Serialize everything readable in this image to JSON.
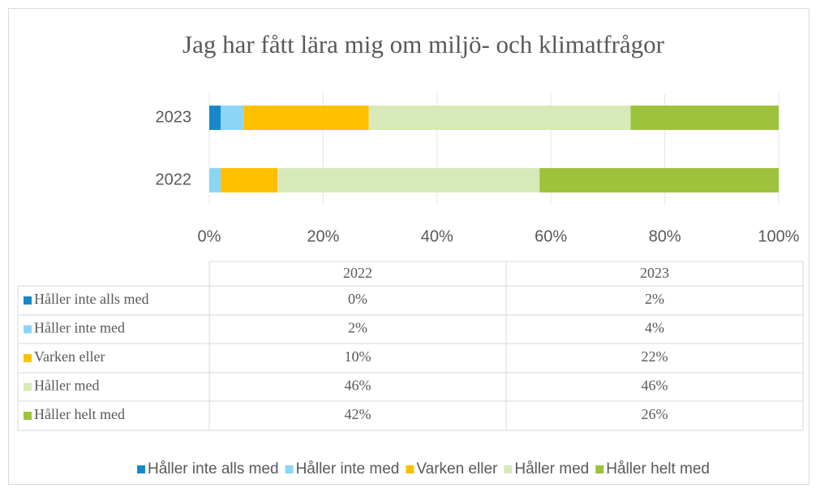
{
  "chart_data": {
    "type": "bar",
    "orientation": "horizontal",
    "stacked": true,
    "title": "Jag har fått lära mig om miljö- och klimatfrågor",
    "categories": [
      "2022",
      "2023"
    ],
    "series": [
      {
        "name": "Håller inte alls med",
        "color": "#1789c9",
        "values": [
          0,
          2
        ],
        "value_labels": [
          "0%",
          "2%"
        ]
      },
      {
        "name": "Håller inte med",
        "color": "#8bd6f7",
        "values": [
          2,
          4
        ],
        "value_labels": [
          "2%",
          "4%"
        ]
      },
      {
        "name": "Varken eller",
        "color": "#ffc000",
        "values": [
          10,
          22
        ],
        "value_labels": [
          "10%",
          "22%"
        ]
      },
      {
        "name": "Håller med",
        "color": "#d8e9b9",
        "values": [
          46,
          46
        ],
        "value_labels": [
          "46%",
          "46%"
        ]
      },
      {
        "name": "Håller helt med",
        "color": "#9dc33d",
        "values": [
          42,
          26
        ],
        "value_labels": [
          "42%",
          "26%"
        ]
      }
    ],
    "xlim": [
      0,
      100
    ],
    "xticks": [
      {
        "value": 0,
        "label": "0%"
      },
      {
        "value": 20,
        "label": "20%"
      },
      {
        "value": 40,
        "label": "40%"
      },
      {
        "value": 60,
        "label": "60%"
      },
      {
        "value": 80,
        "label": "80%"
      },
      {
        "value": 100,
        "label": "100%"
      }
    ],
    "data_table": true,
    "legend": "bottom"
  }
}
